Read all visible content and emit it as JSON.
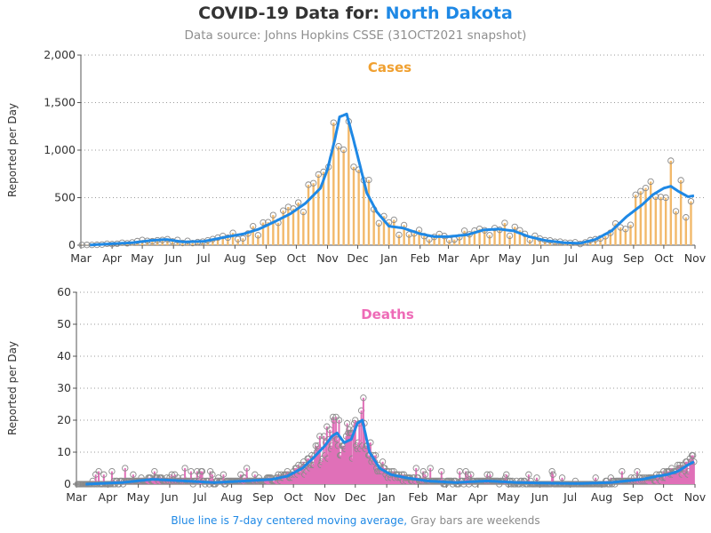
{
  "header": {
    "title_prefix": "COVID-19 Data for:",
    "state": "North Dakota",
    "subtitle": "Data source: Johns Hopkins CSSE (31OCT2021 snapshot)"
  },
  "footnote": {
    "blue_text": "Blue line is 7-day centered moving average,",
    "gray_text": "Gray bars are weekends"
  },
  "colors": {
    "cases": "#f2b96b",
    "cases_label": "#f0a030",
    "deaths": "#e070b8",
    "deaths_label": "#ee6bb7",
    "average": "#1e88e5",
    "marker": "#8a8a8a"
  },
  "chart_data": [
    {
      "type": "bar",
      "panel_label": "Cases",
      "ylabel": "Reported per Day",
      "ylim": [
        0,
        2000
      ],
      "yticks": [
        0,
        500,
        1000,
        1500,
        2000
      ],
      "ytick_labels": [
        "0",
        "500",
        "1,000",
        "1,500",
        "2,000"
      ],
      "xtick_labels": [
        "Mar",
        "Apr",
        "May",
        "Jun",
        "Jul",
        "Aug",
        "Sep",
        "Oct",
        "Nov",
        "Dec",
        "Jan",
        "Feb",
        "Mar",
        "Apr",
        "May",
        "Jun",
        "Jul",
        "Aug",
        "Sep",
        "Oct",
        "Nov"
      ],
      "x_month_starts": [
        "2020-03-01",
        "2020-04-01",
        "2020-05-01",
        "2020-06-01",
        "2020-07-01",
        "2020-08-01",
        "2020-09-01",
        "2020-10-01",
        "2020-11-01",
        "2020-12-01",
        "2021-01-01",
        "2021-02-01",
        "2021-03-01",
        "2021-04-01",
        "2021-05-01",
        "2021-06-01",
        "2021-07-01",
        "2021-08-01",
        "2021-09-01",
        "2021-10-01",
        "2021-11-01"
      ],
      "grid": true,
      "series": [
        {
          "name": "Blue line is 7-day centered moving average",
          "dates": [
            "2020-03-10",
            "2020-04-01",
            "2020-04-20",
            "2020-05-10",
            "2020-05-25",
            "2020-06-10",
            "2020-07-01",
            "2020-07-20",
            "2020-08-10",
            "2020-08-25",
            "2020-09-10",
            "2020-09-25",
            "2020-10-10",
            "2020-10-25",
            "2020-11-01",
            "2020-11-08",
            "2020-11-13",
            "2020-11-20",
            "2020-11-27",
            "2020-12-03",
            "2020-12-10",
            "2020-12-20",
            "2021-01-01",
            "2021-01-15",
            "2021-02-01",
            "2021-02-15",
            "2021-03-01",
            "2021-03-20",
            "2021-04-05",
            "2021-04-20",
            "2021-05-05",
            "2021-05-20",
            "2021-06-05",
            "2021-06-25",
            "2021-07-10",
            "2021-07-25",
            "2021-08-10",
            "2021-08-25",
            "2021-09-10",
            "2021-09-20",
            "2021-10-01",
            "2021-10-08",
            "2021-10-15",
            "2021-10-25",
            "2021-10-31"
          ],
          "values": [
            2,
            15,
            25,
            50,
            60,
            35,
            40,
            80,
            120,
            170,
            250,
            330,
            440,
            600,
            800,
            1100,
            1350,
            1380,
            1100,
            850,
            550,
            350,
            200,
            180,
            120,
            90,
            90,
            110,
            160,
            170,
            150,
            90,
            50,
            25,
            20,
            60,
            150,
            300,
            430,
            530,
            600,
            620,
            570,
            510,
            520
          ]
        }
      ]
    },
    {
      "type": "bar",
      "panel_label": "Deaths",
      "ylabel": "Reported per Day",
      "ylim": [
        0,
        60
      ],
      "yticks": [
        0,
        10,
        20,
        30,
        40,
        50,
        60
      ],
      "ytick_labels": [
        "0",
        "10",
        "20",
        "30",
        "40",
        "50",
        "60"
      ],
      "xtick_labels": [
        "Mar",
        "Apr",
        "May",
        "Jun",
        "Jul",
        "Aug",
        "Sep",
        "Oct",
        "Nov",
        "Dec",
        "Jan",
        "Feb",
        "Mar",
        "Apr",
        "May",
        "Jun",
        "Jul",
        "Aug",
        "Sep",
        "Oct",
        "Nov"
      ],
      "x_month_starts": [
        "2020-03-01",
        "2020-04-01",
        "2020-05-01",
        "2020-06-01",
        "2020-07-01",
        "2020-08-01",
        "2020-09-01",
        "2020-10-01",
        "2020-11-01",
        "2020-12-01",
        "2021-01-01",
        "2021-02-01",
        "2021-03-01",
        "2021-04-01",
        "2021-05-01",
        "2021-06-01",
        "2021-07-01",
        "2021-08-01",
        "2021-09-01",
        "2021-10-01",
        "2021-11-01"
      ],
      "grid": true,
      "series": [
        {
          "name": "Blue line is 7-day centered moving average",
          "dates": [
            "2020-03-10",
            "2020-04-15",
            "2020-05-15",
            "2020-06-15",
            "2020-07-15",
            "2020-08-15",
            "2020-09-10",
            "2020-09-25",
            "2020-10-10",
            "2020-10-20",
            "2020-11-01",
            "2020-11-08",
            "2020-11-13",
            "2020-11-20",
            "2020-11-27",
            "2020-12-03",
            "2020-12-08",
            "2020-12-15",
            "2020-12-25",
            "2021-01-05",
            "2021-01-20",
            "2021-02-10",
            "2021-03-10",
            "2021-04-10",
            "2021-05-10",
            "2021-06-10",
            "2021-07-10",
            "2021-08-10",
            "2021-08-25",
            "2021-09-10",
            "2021-09-25",
            "2021-10-05",
            "2021-10-15",
            "2021-10-25",
            "2021-10-31"
          ],
          "values": [
            0,
            0.5,
            1.5,
            1,
            0.5,
            1,
            1.5,
            2.5,
            5,
            8,
            12,
            15,
            16,
            13,
            14,
            19,
            20,
            10,
            5,
            3,
            2,
            1,
            0.5,
            1,
            0.5,
            0.3,
            0.2,
            0.5,
            1,
            1.5,
            2.5,
            3,
            4,
            6,
            7
          ]
        }
      ]
    }
  ]
}
